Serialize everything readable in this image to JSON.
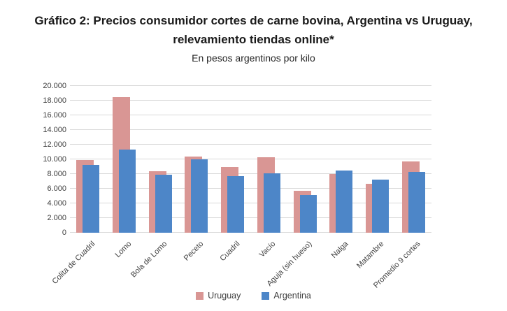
{
  "header": {
    "title_line1": "Gráfico 2: Precios consumidor cortes de carne bovina, Argentina vs Uruguay,",
    "title_line2": "relevamiento tiendas online*",
    "subtitle": "En pesos argentinos por kilo"
  },
  "chart_data": {
    "type": "bar",
    "title": "Gráfico 2: Precios consumidor cortes de carne bovina, Argentina vs Uruguay, relevamiento tiendas online*",
    "subtitle": "En pesos argentinos por kilo",
    "categories": [
      "Colita de Cuadril",
      "Lomo",
      "Bola de Lomo",
      "Peceto",
      "Cuadril",
      "Vacío",
      "Aguja (sin hueso)",
      "Nalga",
      "Matambre",
      "Promedio 9 cortes"
    ],
    "series": [
      {
        "name": "Uruguay",
        "color": "#d99694",
        "values": [
          9900,
          18500,
          8400,
          10400,
          9000,
          10300,
          5700,
          8000,
          6700,
          9700
        ]
      },
      {
        "name": "Argentina",
        "color": "#4d86c8",
        "values": [
          9200,
          11300,
          7900,
          10000,
          7700,
          8100,
          5100,
          8500,
          7200,
          8300
        ]
      }
    ],
    "xlabel": "",
    "ylabel": "",
    "ylim": [
      0,
      20000
    ],
    "ytick_step": 2000,
    "ytick_labels": [
      "0",
      "2.000",
      "4.000",
      "6.000",
      "8.000",
      "10.000",
      "12.000",
      "14.000",
      "16.000",
      "18.000",
      "20.000"
    ],
    "grid": true,
    "gridline_color": "#d9d9d9",
    "legend_position": "bottom",
    "legend_labels": [
      "Uruguay",
      "Argentina"
    ]
  }
}
